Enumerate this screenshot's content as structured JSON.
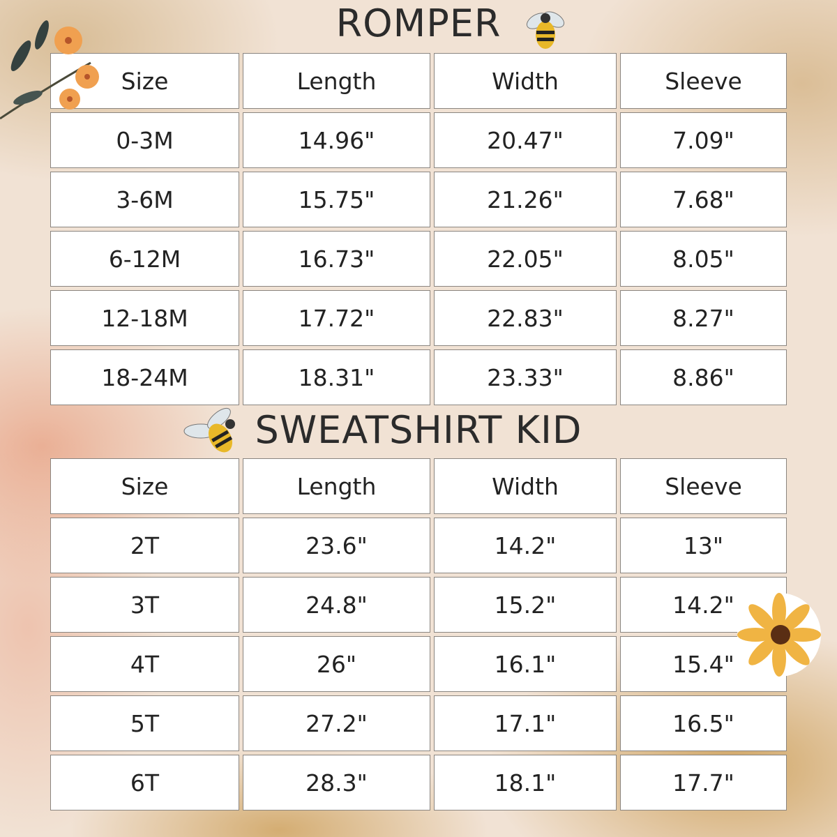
{
  "tables": [
    {
      "title": "ROMPER",
      "headers": [
        "Size",
        "Length",
        "Width",
        "Sleeve"
      ],
      "rows": [
        [
          "0-3M",
          "14.96\"",
          "20.47\"",
          "7.09\""
        ],
        [
          "3-6M",
          "15.75\"",
          "21.26\"",
          "7.68\""
        ],
        [
          "6-12M",
          "16.73\"",
          "22.05\"",
          "8.05\""
        ],
        [
          "12-18M",
          "17.72\"",
          "22.83\"",
          "8.27\""
        ],
        [
          "18-24M",
          "18.31\"",
          "23.33\"",
          "8.86\""
        ]
      ]
    },
    {
      "title": "SWEATSHIRT KID",
      "headers": [
        "Size",
        "Length",
        "Width",
        "Sleeve"
      ],
      "rows": [
        [
          "2T",
          "23.6\"",
          "14.2\"",
          "13\""
        ],
        [
          "3T",
          "24.8\"",
          "15.2\"",
          "14.2\""
        ],
        [
          "4T",
          "26\"",
          "16.1\"",
          "15.4\""
        ],
        [
          "5T",
          "27.2\"",
          "17.1\"",
          "16.5\""
        ],
        [
          "6T",
          "28.3\"",
          "18.1\"",
          "17.7\""
        ]
      ]
    }
  ],
  "decorations": [
    "bee-icon",
    "bee-icon",
    "orange-flower-branch-icon",
    "sunflower-icon"
  ]
}
